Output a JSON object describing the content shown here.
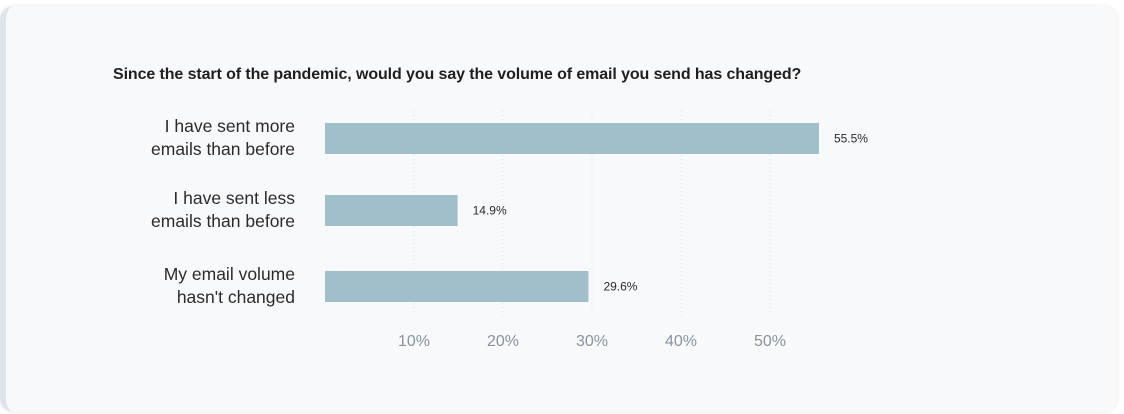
{
  "chart_data": {
    "type": "bar",
    "orientation": "horizontal",
    "title": "Since the start of the pandemic, would you say the volume of email you send has changed?",
    "categories": [
      [
        "I have sent more",
        "emails than before"
      ],
      [
        "I have sent less",
        "emails than before"
      ],
      [
        "My email volume",
        "hasn't changed"
      ]
    ],
    "values": [
      55.5,
      14.9,
      29.6
    ],
    "value_labels": [
      "55.5%",
      "14.9%",
      "29.6%"
    ],
    "xlim": [
      0,
      60
    ],
    "xticks": [
      10,
      20,
      30,
      40,
      50
    ],
    "xtick_labels": [
      "10%",
      "20%",
      "30%",
      "40%",
      "50%"
    ],
    "xlabel": "",
    "ylabel": "",
    "grid": "vertical-dotted",
    "legend": "none",
    "bar_color": "#a0bfca",
    "grid_color": "#dde2e7"
  }
}
